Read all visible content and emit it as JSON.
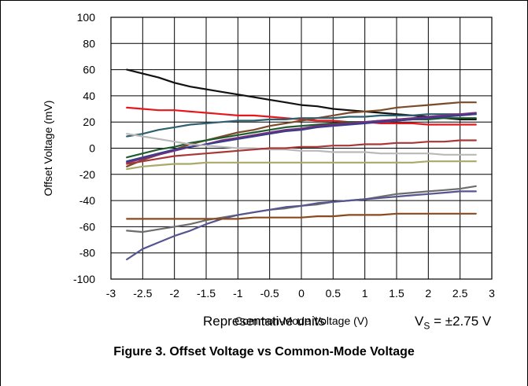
{
  "chart_data": {
    "type": "line",
    "caption": "Figure 3. Offset Voltage vs Common-Mode Voltage",
    "xlabel": "Common-Mode Voltage (V)",
    "ylabel": "Offset Voltage (mV)",
    "xlim": [
      -3,
      3
    ],
    "ylim": [
      -100,
      100
    ],
    "xticks": [
      -3,
      -2.5,
      -2,
      -1.5,
      -1,
      -0.5,
      0,
      0.5,
      1,
      1.5,
      2,
      2.5,
      3
    ],
    "yticks": [
      -100,
      -80,
      -60,
      -40,
      -20,
      0,
      20,
      40,
      60,
      80,
      100
    ],
    "grid": true,
    "legend": "none",
    "annotations": {
      "units_note": "Representative units",
      "vs_prefix": "V",
      "vs_sub": "S",
      "vs_value": " = ±2.75 V"
    },
    "x": [
      -2.75,
      -2.5,
      -2.25,
      -2,
      -1.75,
      -1.5,
      -1.25,
      -1,
      -0.75,
      -0.5,
      -0.25,
      0,
      0.25,
      0.5,
      0.75,
      1,
      1.25,
      1.5,
      1.75,
      2,
      2.25,
      2.5,
      2.75
    ],
    "series": [
      {
        "color": "#111111",
        "values": [
          60,
          57,
          54,
          50,
          47,
          45,
          43,
          41,
          39,
          37,
          35,
          33,
          32,
          30,
          29,
          28,
          27,
          26,
          25,
          24,
          23,
          22,
          22
        ]
      },
      {
        "color": "#e8171e",
        "values": [
          31,
          30,
          29,
          29,
          28,
          27,
          26,
          25,
          25,
          24,
          23,
          22,
          21,
          21,
          20,
          20,
          19,
          19,
          19,
          18,
          18,
          18,
          18
        ]
      },
      {
        "color": "#7b4a28",
        "values": [
          -14,
          -9,
          -5,
          -1,
          3,
          6,
          9,
          12,
          14,
          17,
          19,
          21,
          23,
          25,
          27,
          28,
          29,
          31,
          32,
          33,
          34,
          35,
          35
        ]
      },
      {
        "color": "#2e6070",
        "values": [
          9,
          11,
          14,
          16,
          18,
          19,
          20,
          21,
          21,
          22,
          22,
          23,
          23,
          23,
          24,
          24,
          25,
          25,
          25,
          26,
          26,
          26,
          26
        ]
      },
      {
        "color": "#1f5c2e",
        "values": [
          -7,
          -4,
          -1,
          1,
          4,
          6,
          8,
          10,
          12,
          14,
          16,
          17,
          18,
          19,
          20,
          20,
          21,
          21,
          22,
          22,
          23,
          23,
          23
        ]
      },
      {
        "color": "#7a2f7a",
        "values": [
          -11,
          -8,
          -5,
          -2,
          1,
          3,
          6,
          8,
          10,
          12,
          14,
          15,
          17,
          18,
          19,
          20,
          21,
          22,
          23,
          24,
          25,
          26,
          27
        ]
      },
      {
        "color": "#3c3c8c",
        "values": [
          -10,
          -7,
          -4,
          -1,
          1,
          3,
          5,
          7,
          9,
          11,
          13,
          14,
          16,
          17,
          18,
          19,
          20,
          21,
          22,
          23,
          24,
          25,
          26
        ]
      },
      {
        "color": "#b9b9b9",
        "values": [
          11,
          9,
          7,
          5,
          3,
          2,
          1,
          0,
          0,
          -1,
          -1,
          -2,
          -2,
          -3,
          -3,
          -3,
          -4,
          -4,
          -4,
          -4,
          -5,
          -5,
          -5
        ]
      },
      {
        "color": "#a83838",
        "values": [
          -12,
          -10,
          -8,
          -6,
          -5,
          -4,
          -3,
          -2,
          -1,
          0,
          0,
          1,
          1,
          2,
          2,
          3,
          3,
          4,
          4,
          5,
          5,
          6,
          6
        ]
      },
      {
        "color": "#a9a968",
        "values": [
          -16,
          -14,
          -13,
          -12,
          -12,
          -11,
          -11,
          -11,
          -11,
          -11,
          -11,
          -11,
          -11,
          -11,
          -11,
          -11,
          -11,
          -11,
          -11,
          -10,
          -10,
          -10,
          -10
        ]
      },
      {
        "color": "#6d6d6d",
        "values": [
          -63,
          -64,
          -62,
          -60,
          -58,
          -55,
          -53,
          -51,
          -49,
          -47,
          -46,
          -44,
          -43,
          -41,
          -40,
          -39,
          -37,
          -35,
          -34,
          -33,
          -32,
          -31,
          -29
        ]
      },
      {
        "color": "#55558f",
        "values": [
          -85,
          -77,
          -72,
          -67,
          -63,
          -58,
          -54,
          -51,
          -49,
          -47,
          -45,
          -44,
          -42,
          -41,
          -40,
          -39,
          -38,
          -37,
          -36,
          -35,
          -34,
          -33,
          -33
        ]
      },
      {
        "color": "#8a4a1e",
        "values": [
          -54,
          -54,
          -54,
          -54,
          -54,
          -54,
          -54,
          -54,
          -53,
          -53,
          -53,
          -53,
          -52,
          -52,
          -51,
          -51,
          -51,
          -50,
          -50,
          -50,
          -50,
          -50,
          -50
        ]
      }
    ]
  }
}
